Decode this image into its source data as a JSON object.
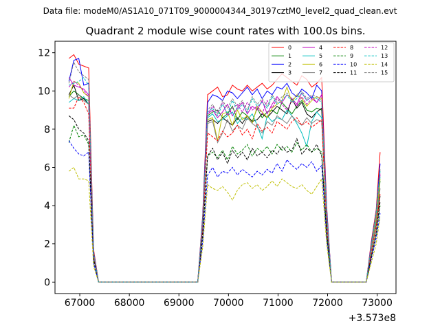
{
  "suptitle": "Data file: modeM0/AS1A10_071T09_9000004344_30197cztM0_level2_quad_clean.evt",
  "chart_data": {
    "type": "line",
    "title": "Quadrant 2 module wise count rates with 100.0s bins.",
    "xlabel": "",
    "ylabel": "",
    "x_offset_label": "+3.573e8",
    "xlim": [
      66500,
      73380
    ],
    "ylim": [
      -0.6,
      12.6
    ],
    "xticks": [
      67000,
      68000,
      69000,
      70000,
      71000,
      72000,
      73000
    ],
    "xtick_labels": [
      "67000",
      "68000",
      "69000",
      "70000",
      "71000",
      "72000",
      "73000"
    ],
    "yticks": [
      0,
      2,
      4,
      6,
      8,
      10,
      12
    ],
    "ytick_labels": [
      "0",
      "2",
      "4",
      "6",
      "8",
      "10",
      "12"
    ],
    "legend_position": "top-right",
    "x": [
      66780,
      66880,
      66980,
      67080,
      67180,
      67280,
      67380,
      67480,
      67580,
      67680,
      67780,
      67880,
      67980,
      68080,
      68180,
      68280,
      68380,
      68480,
      68580,
      68680,
      68780,
      68880,
      68980,
      69080,
      69180,
      69280,
      69380,
      69480,
      69580,
      69680,
      69780,
      69880,
      69980,
      70080,
      70180,
      70280,
      70380,
      70480,
      70580,
      70680,
      70780,
      70880,
      70980,
      71080,
      71180,
      71280,
      71380,
      71480,
      71580,
      71680,
      71780,
      71880,
      71980,
      72080,
      72180,
      72280,
      72380,
      72480,
      72580,
      72680,
      72780,
      72880,
      72980,
      73060
    ],
    "series": [
      {
        "name": "0",
        "color": "#ff0000",
        "dashed": false,
        "values": [
          11.7,
          11.9,
          11.4,
          11.3,
          11.2,
          1.7,
          0,
          0,
          0,
          0,
          0,
          0,
          0,
          0,
          0,
          0,
          0,
          0,
          0,
          0,
          0,
          0,
          0,
          0,
          0,
          0,
          0,
          3.5,
          9.8,
          10.0,
          10.2,
          9.7,
          9.8,
          10.3,
          10.1,
          10.0,
          10.3,
          10.0,
          10.2,
          10.4,
          10.1,
          10.3,
          10.6,
          10.9,
          10.7,
          10.5,
          10.3,
          10.8,
          10.6,
          10.2,
          10.4,
          10.7,
          4.0,
          0,
          0,
          0,
          0,
          0,
          0,
          0,
          0,
          2.1,
          3.8,
          6.8
        ]
      },
      {
        "name": "1",
        "color": "#008000",
        "dashed": false,
        "values": [
          9.7,
          10.0,
          9.8,
          9.6,
          9.5,
          1.4,
          0,
          0,
          0,
          0,
          0,
          0,
          0,
          0,
          0,
          0,
          0,
          0,
          0,
          0,
          0,
          0,
          0,
          0,
          0,
          0,
          0,
          3.0,
          8.7,
          8.9,
          9.0,
          8.6,
          8.8,
          9.2,
          8.5,
          8.9,
          8.7,
          8.4,
          9.1,
          8.6,
          8.9,
          9.0,
          8.8,
          9.4,
          9.1,
          8.8,
          9.2,
          9.5,
          9.0,
          8.9,
          9.1,
          9.0,
          3.4,
          0,
          0,
          0,
          0,
          0,
          0,
          0,
          0,
          1.8,
          3.2,
          5.3
        ]
      },
      {
        "name": "2",
        "color": "#0000ff",
        "dashed": false,
        "values": [
          10.5,
          11.6,
          11.7,
          10.3,
          10.4,
          1.6,
          0,
          0,
          0,
          0,
          0,
          0,
          0,
          0,
          0,
          0,
          0,
          0,
          0,
          0,
          0,
          0,
          0,
          0,
          0,
          0,
          0,
          3.4,
          9.4,
          9.8,
          9.7,
          9.5,
          10.0,
          9.9,
          9.6,
          9.9,
          10.2,
          9.8,
          10.1,
          9.6,
          10.0,
          9.8,
          10.2,
          10.1,
          10.4,
          9.9,
          9.7,
          10.1,
          9.9,
          9.6,
          10.3,
          10.0,
          3.9,
          0,
          0,
          0,
          0,
          0,
          0,
          0,
          0,
          2.0,
          3.7,
          6.2
        ]
      },
      {
        "name": "3",
        "color": "#000000",
        "dashed": false,
        "values": [
          9.8,
          10.3,
          9.5,
          9.6,
          9.3,
          1.5,
          0,
          0,
          0,
          0,
          0,
          0,
          0,
          0,
          0,
          0,
          0,
          0,
          0,
          0,
          0,
          0,
          0,
          0,
          0,
          0,
          0,
          3.0,
          8.4,
          8.5,
          8.3,
          8.6,
          8.4,
          8.2,
          8.6,
          8.3,
          8.7,
          8.4,
          8.5,
          8.8,
          8.6,
          8.9,
          9.2,
          9.0,
          8.8,
          9.6,
          9.1,
          9.4,
          8.8,
          8.6,
          8.9,
          9.1,
          3.5,
          0,
          0,
          0,
          0,
          0,
          0,
          0,
          0,
          1.6,
          3.0,
          4.5
        ]
      },
      {
        "name": "4",
        "color": "#bf00bf",
        "dashed": false,
        "values": [
          10.7,
          10.3,
          10.2,
          10.1,
          9.8,
          1.5,
          0,
          0,
          0,
          0,
          0,
          0,
          0,
          0,
          0,
          0,
          0,
          0,
          0,
          0,
          0,
          0,
          0,
          0,
          0,
          0,
          0,
          3.1,
          8.8,
          9.0,
          8.6,
          8.9,
          9.3,
          8.7,
          9.1,
          9.4,
          8.8,
          9.2,
          9.0,
          9.5,
          8.8,
          9.3,
          9.7,
          9.4,
          9.8,
          9.6,
          9.3,
          9.9,
          9.5,
          9.7,
          9.4,
          9.8,
          3.6,
          0,
          0,
          0,
          0,
          0,
          0,
          0,
          0,
          1.9,
          3.5,
          5.6
        ]
      },
      {
        "name": "5",
        "color": "#00bfbf",
        "dashed": false,
        "values": [
          9.4,
          9.6,
          9.5,
          9.7,
          9.3,
          1.4,
          0,
          0,
          0,
          0,
          0,
          0,
          0,
          0,
          0,
          0,
          0,
          0,
          0,
          0,
          0,
          0,
          0,
          0,
          0,
          0,
          0,
          3.0,
          8.6,
          8.8,
          8.4,
          8.5,
          8.7,
          8.9,
          8.3,
          8.6,
          8.5,
          8.8,
          8.2,
          7.5,
          8.7,
          8.4,
          8.6,
          8.5,
          9.0,
          8.7,
          8.3,
          7.8,
          7.1,
          8.4,
          8.9,
          8.6,
          3.3,
          0,
          0,
          0,
          0,
          0,
          0,
          0,
          0,
          1.7,
          3.3,
          5.5
        ]
      },
      {
        "name": "6",
        "color": "#bfbf00",
        "dashed": false,
        "values": [
          9.6,
          10.5,
          10.4,
          9.9,
          9.7,
          1.4,
          0,
          0,
          0,
          0,
          0,
          0,
          0,
          0,
          0,
          0,
          0,
          0,
          0,
          0,
          0,
          0,
          0,
          0,
          0,
          0,
          0,
          3.1,
          8.5,
          8.6,
          7.4,
          8.8,
          8.9,
          8.2,
          9.0,
          8.5,
          8.7,
          8.3,
          9.2,
          8.9,
          8.6,
          9.1,
          9.3,
          9.5,
          10.2,
          9.4,
          9.8,
          9.6,
          9.2,
          9.5,
          9.7,
          9.6,
          3.5,
          0,
          0,
          0,
          0,
          0,
          0,
          0,
          0,
          1.8,
          3.4,
          5.4
        ]
      },
      {
        "name": "7",
        "color": "#808080",
        "dashed": false,
        "values": [
          9.8,
          9.6,
          9.8,
          9.5,
          9.3,
          1.4,
          0,
          0,
          0,
          0,
          0,
          0,
          0,
          0,
          0,
          0,
          0,
          0,
          0,
          0,
          0,
          0,
          0,
          0,
          0,
          0,
          0,
          3.0,
          8.3,
          8.4,
          7.3,
          7.8,
          8.5,
          7.9,
          8.2,
          8.0,
          8.6,
          8.3,
          8.1,
          7.8,
          8.4,
          8.2,
          8.7,
          8.5,
          8.3,
          8.7,
          8.4,
          8.2,
          8.6,
          8.3,
          8.5,
          8.4,
          3.2,
          0,
          0,
          0,
          0,
          0,
          0,
          0,
          0,
          1.6,
          3.1,
          4.9
        ]
      },
      {
        "name": "8",
        "color": "#ff0000",
        "dashed": true,
        "values": [
          9.1,
          9.1,
          9.7,
          9.4,
          8.8,
          1.3,
          0,
          0,
          0,
          0,
          0,
          0,
          0,
          0,
          0,
          0,
          0,
          0,
          0,
          0,
          0,
          0,
          0,
          0,
          0,
          0,
          0,
          2.8,
          7.8,
          7.6,
          7.4,
          7.9,
          7.6,
          7.8,
          8.2,
          7.7,
          8.0,
          7.5,
          8.3,
          7.9,
          8.1,
          7.8,
          8.4,
          8.2,
          8.0,
          8.4,
          8.6,
          8.2,
          8.4,
          8.1,
          8.3,
          8.5,
          3.1,
          0,
          0,
          0,
          0,
          0,
          0,
          0,
          0,
          1.5,
          2.9,
          4.6
        ]
      },
      {
        "name": "9",
        "color": "#008000",
        "dashed": true,
        "values": [
          7.3,
          8.2,
          7.6,
          7.7,
          7.2,
          1.1,
          0,
          0,
          0,
          0,
          0,
          0,
          0,
          0,
          0,
          0,
          0,
          0,
          0,
          0,
          0,
          0,
          0,
          0,
          0,
          0,
          0,
          2.4,
          6.6,
          6.8,
          6.5,
          6.9,
          6.4,
          7.1,
          6.7,
          6.9,
          7.2,
          6.6,
          7.0,
          6.8,
          7.1,
          6.7,
          7.2,
          6.9,
          7.1,
          6.8,
          7.3,
          6.9,
          7.2,
          6.8,
          7.0,
          6.8,
          2.6,
          0,
          0,
          0,
          0,
          0,
          0,
          0,
          0,
          1.3,
          2.5,
          4.0
        ]
      },
      {
        "name": "10",
        "color": "#0000ff",
        "dashed": true,
        "values": [
          7.4,
          7.0,
          6.7,
          6.6,
          6.8,
          1.0,
          0,
          0,
          0,
          0,
          0,
          0,
          0,
          0,
          0,
          0,
          0,
          0,
          0,
          0,
          0,
          0,
          0,
          0,
          0,
          0,
          0,
          2.1,
          5.6,
          6.0,
          5.5,
          5.8,
          5.7,
          6.0,
          5.6,
          5.9,
          5.7,
          5.5,
          5.8,
          5.6,
          5.9,
          5.7,
          6.2,
          5.8,
          6.4,
          6.1,
          5.9,
          6.2,
          6.0,
          6.3,
          5.8,
          6.1,
          2.3,
          0,
          0,
          0,
          0,
          0,
          0,
          0,
          0,
          1.2,
          2.3,
          3.6
        ]
      },
      {
        "name": "11",
        "color": "#000000",
        "dashed": true,
        "values": [
          8.7,
          8.5,
          8.0,
          7.8,
          7.4,
          1.2,
          0,
          0,
          0,
          0,
          0,
          0,
          0,
          0,
          0,
          0,
          0,
          0,
          0,
          0,
          0,
          0,
          0,
          0,
          0,
          0,
          0,
          2.5,
          6.6,
          7.0,
          6.4,
          6.8,
          6.2,
          6.9,
          6.5,
          6.8,
          6.4,
          7.0,
          6.6,
          6.8,
          6.5,
          6.9,
          6.7,
          7.1,
          6.8,
          6.9,
          7.5,
          6.7,
          7.0,
          6.8,
          7.2,
          6.6,
          2.6,
          0,
          0,
          0,
          0,
          0,
          0,
          0,
          0,
          1.3,
          2.6,
          4.2
        ]
      },
      {
        "name": "12",
        "color": "#bf00bf",
        "dashed": true,
        "values": [
          10.2,
          10.5,
          10.3,
          10.0,
          9.7,
          1.5,
          0,
          0,
          0,
          0,
          0,
          0,
          0,
          0,
          0,
          0,
          0,
          0,
          0,
          0,
          0,
          0,
          0,
          0,
          0,
          0,
          0,
          3.2,
          8.8,
          9.2,
          8.9,
          9.4,
          8.7,
          9.1,
          9.3,
          8.9,
          9.4,
          9.0,
          9.2,
          8.8,
          9.5,
          9.1,
          9.6,
          9.3,
          9.0,
          9.5,
          9.2,
          9.7,
          9.3,
          9.6,
          9.4,
          9.8,
          3.7,
          0,
          0,
          0,
          0,
          0,
          0,
          0,
          0,
          1.9,
          3.6,
          5.7
        ]
      },
      {
        "name": "13",
        "color": "#00bfbf",
        "dashed": true,
        "values": [
          10.3,
          10.4,
          10.5,
          10.7,
          10.3,
          1.5,
          0,
          0,
          0,
          0,
          0,
          0,
          0,
          0,
          0,
          0,
          0,
          0,
          0,
          0,
          0,
          0,
          0,
          0,
          0,
          0,
          0,
          3.2,
          8.9,
          9.1,
          8.7,
          9.3,
          8.8,
          9.5,
          9.0,
          9.3,
          8.9,
          9.6,
          9.2,
          9.4,
          9.1,
          9.7,
          9.3,
          9.5,
          9.8,
          9.4,
          9.6,
          9.9,
          9.5,
          9.7,
          9.6,
          9.4,
          3.6,
          0,
          0,
          0,
          0,
          0,
          0,
          0,
          0,
          1.9,
          3.6,
          5.8
        ]
      },
      {
        "name": "14",
        "color": "#bfbf00",
        "dashed": true,
        "values": [
          5.8,
          6.0,
          5.4,
          5.4,
          5.3,
          0.8,
          0,
          0,
          0,
          0,
          0,
          0,
          0,
          0,
          0,
          0,
          0,
          0,
          0,
          0,
          0,
          0,
          0,
          0,
          0,
          0,
          0,
          1.8,
          5.1,
          4.9,
          4.8,
          5.0,
          4.7,
          4.3,
          4.8,
          5.1,
          5.2,
          4.9,
          5.1,
          4.8,
          5.0,
          5.3,
          5.0,
          5.4,
          5.2,
          5.0,
          4.9,
          5.1,
          4.8,
          4.6,
          5.0,
          5.4,
          2.0,
          0,
          0,
          0,
          0,
          0,
          0,
          0,
          0,
          1.0,
          2.0,
          3.4
        ]
      },
      {
        "name": "15",
        "color": "#808080",
        "dashed": true,
        "values": [
          10.4,
          11.5,
          11.0,
          10.8,
          10.6,
          1.6,
          0,
          0,
          0,
          0,
          0,
          0,
          0,
          0,
          0,
          0,
          0,
          0,
          0,
          0,
          0,
          0,
          0,
          0,
          0,
          0,
          0,
          3.3,
          9.0,
          9.3,
          8.8,
          9.5,
          9.1,
          9.6,
          9.2,
          9.5,
          9.0,
          9.7,
          9.3,
          9.6,
          9.2,
          9.8,
          9.4,
          9.7,
          9.9,
          9.5,
          9.8,
          10.0,
          9.6,
          9.8,
          9.7,
          9.5,
          3.7,
          0,
          0,
          0,
          0,
          0,
          0,
          0,
          0,
          1.9,
          3.7,
          5.9
        ]
      }
    ]
  }
}
